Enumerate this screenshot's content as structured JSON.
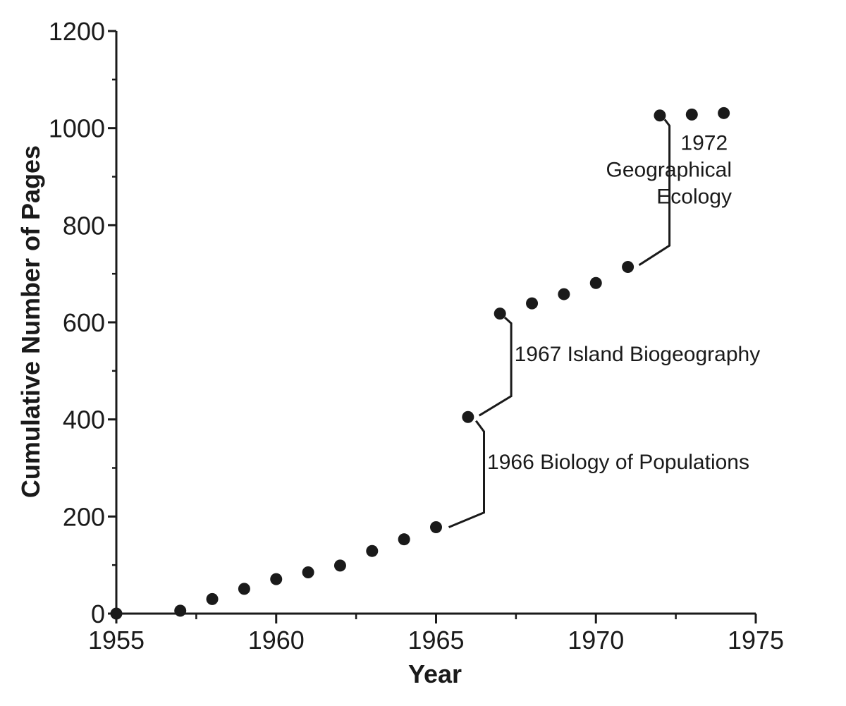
{
  "chart_data": {
    "type": "scatter",
    "title": "",
    "xlabel": "Year",
    "ylabel": "Cumulative Number of Pages",
    "xlim": [
      1955,
      1975
    ],
    "ylim": [
      0,
      1200
    ],
    "x_ticks": [
      1955,
      1960,
      1965,
      1970,
      1975
    ],
    "y_ticks": [
      0,
      200,
      400,
      600,
      800,
      1000,
      1200
    ],
    "x_minor_step": 2.5,
    "y_minor_step": 100,
    "grid": false,
    "legend": "none",
    "marker_color": "#1a1a1a",
    "points": [
      {
        "x": 1955,
        "y": 0
      },
      {
        "x": 1957,
        "y": 6
      },
      {
        "x": 1958,
        "y": 30
      },
      {
        "x": 1959,
        "y": 51
      },
      {
        "x": 1960,
        "y": 71
      },
      {
        "x": 1961,
        "y": 85
      },
      {
        "x": 1962,
        "y": 99
      },
      {
        "x": 1963,
        "y": 129
      },
      {
        "x": 1964,
        "y": 153
      },
      {
        "x": 1965,
        "y": 178
      },
      {
        "x": 1966,
        "y": 405
      },
      {
        "x": 1967,
        "y": 618
      },
      {
        "x": 1968,
        "y": 639
      },
      {
        "x": 1969,
        "y": 658
      },
      {
        "x": 1970,
        "y": 681
      },
      {
        "x": 1971,
        "y": 714
      },
      {
        "x": 1972,
        "y": 1026
      },
      {
        "x": 1973,
        "y": 1028
      },
      {
        "x": 1974,
        "y": 1031
      }
    ],
    "annotations": [
      {
        "lines": [
          "1966 Biology of Populations"
        ],
        "align": "start",
        "path": [
          [
            1965.4,
            178
          ],
          [
            1966.5,
            208
          ],
          [
            1966.5,
            375
          ],
          [
            1966.25,
            397
          ]
        ],
        "text_x": 1966.6,
        "text_y": 298
      },
      {
        "lines": [
          "1967 Island Biogeography"
        ],
        "align": "start",
        "path": [
          [
            1966.35,
            408
          ],
          [
            1967.35,
            448
          ],
          [
            1967.35,
            598
          ],
          [
            1967.15,
            610
          ]
        ],
        "text_x": 1967.45,
        "text_y": 520
      },
      {
        "lines": [
          "1972",
          "Geographical",
          "Ecology"
        ],
        "align": "end",
        "path": [
          [
            1971.35,
            718
          ],
          [
            1972.3,
            758
          ],
          [
            1972.3,
            1005
          ],
          [
            1972.15,
            1018
          ]
        ],
        "text_x": 1974.25,
        "text_y": 955
      }
    ]
  }
}
